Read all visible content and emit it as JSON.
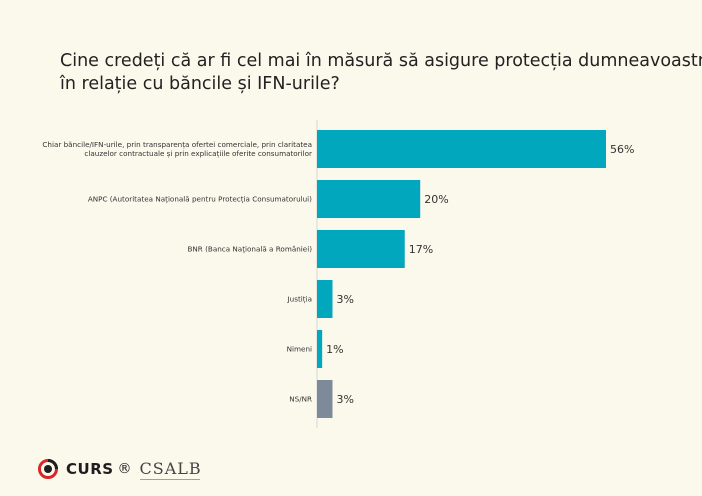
{
  "title_lines": [
    "Cine credeți că ar fi cel mai în măsură să asigure protecția dumneavoastră",
    "în relație cu băncile și IFN-urile?"
  ],
  "chart_data": {
    "type": "bar",
    "orientation": "horizontal",
    "title": "Cine credeți că ar fi cel mai în măsură să asigure protecția dumneavoastră în relație cu băncile și IFN-urile?",
    "categories": [
      [
        "Chiar băncile/IFN-urile, prin transparența ofertei comerciale, prin claritatea",
        "clauzelor contractuale și prin explicațiile oferite consumatorilor"
      ],
      [
        "ANPC (Autoritatea Națională pentru Protecția Consumatorului)"
      ],
      [
        "BNR (Banca Națională a României)"
      ],
      [
        "Justiția"
      ],
      [
        "Nimeni"
      ],
      [
        "NS/NR"
      ]
    ],
    "values": [
      56,
      20,
      17,
      3,
      1,
      3
    ],
    "value_labels": [
      "56%",
      "20%",
      "17%",
      "3%",
      "1%",
      "3%"
    ],
    "colors": [
      "#00a7bd",
      "#00a7bd",
      "#00a7bd",
      "#00a7bd",
      "#00a7bd",
      "#7d8a99"
    ],
    "xlim": [
      0,
      56
    ],
    "grid": false,
    "legend": "none"
  },
  "logos": {
    "curs": "CURS",
    "registered": "®",
    "csalb": "CSALB"
  }
}
